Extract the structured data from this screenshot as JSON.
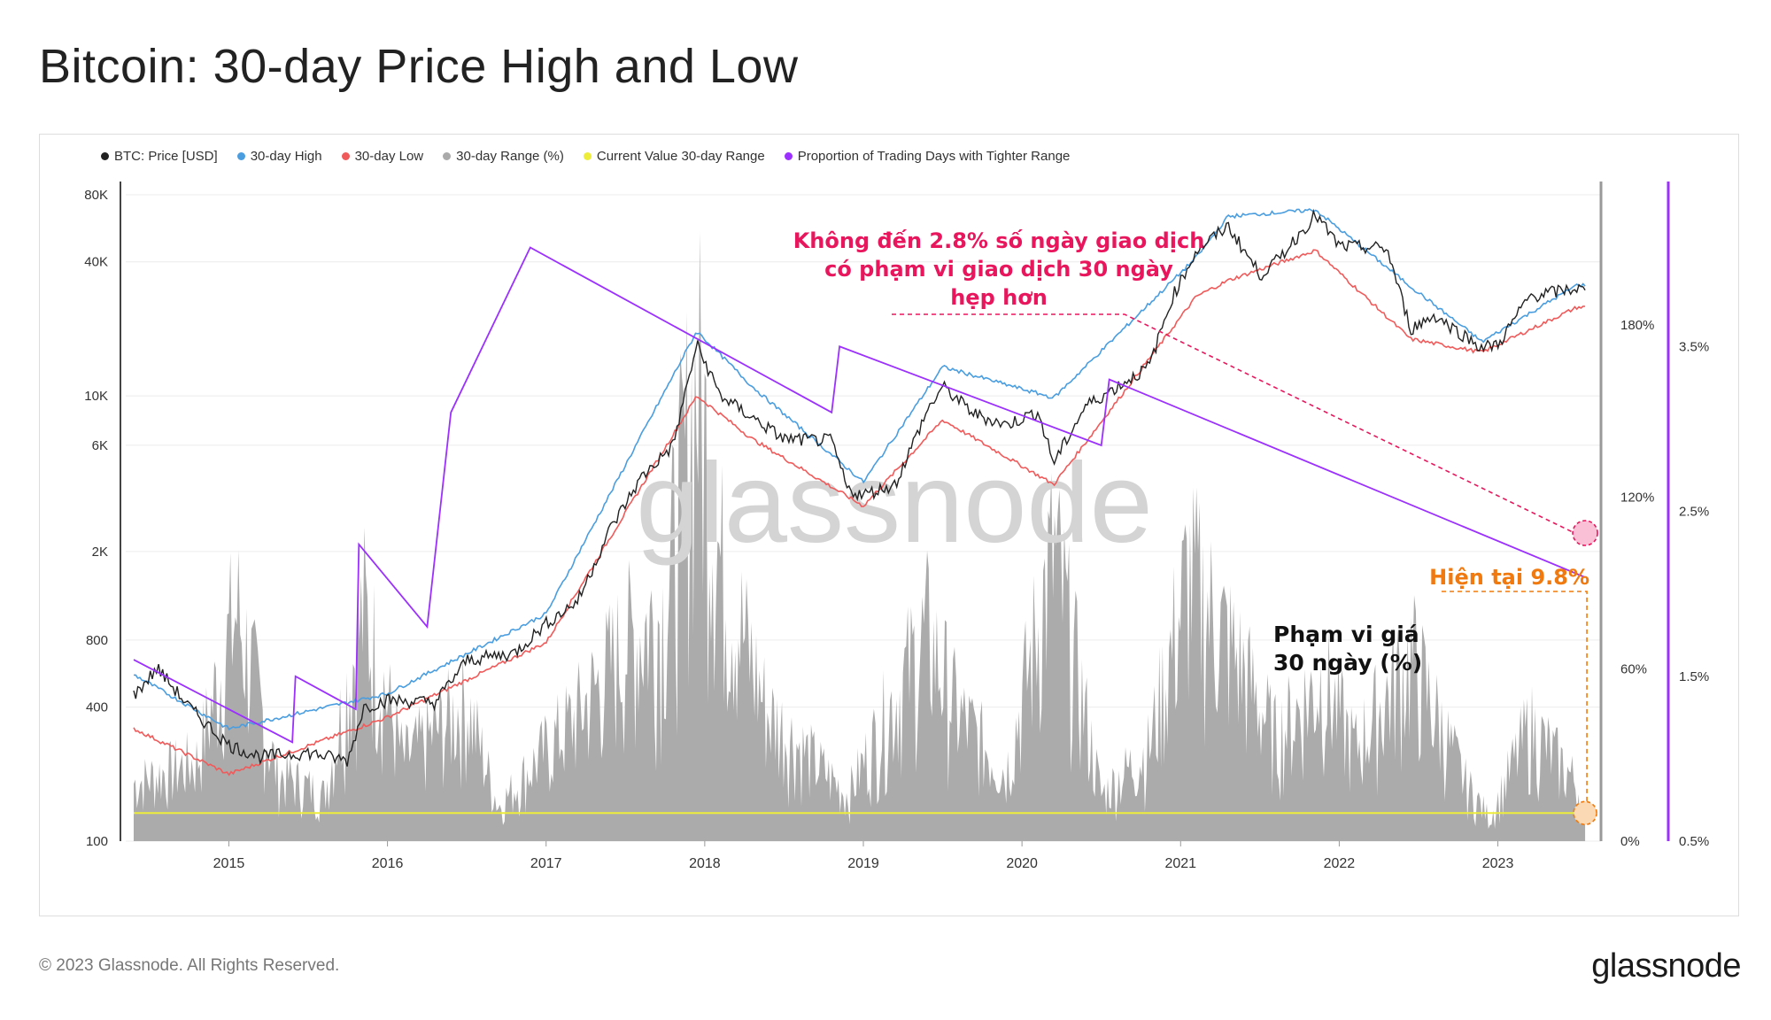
{
  "header": {
    "title": "Bitcoin: 30-day Price High and Low"
  },
  "legend": [
    {
      "label": "BTC: Price [USD]",
      "color": "#222222"
    },
    {
      "label": "30-day High",
      "color": "#4a9ee0"
    },
    {
      "label": "30-day Low",
      "color": "#f05a5a"
    },
    {
      "label": "30-day Range (%)",
      "color": "#aaaaaa"
    },
    {
      "label": "Current Value 30-day Range",
      "color": "#eded3a"
    },
    {
      "label": "Proportion of Trading Days with Tighter Range",
      "color": "#9b30ff"
    }
  ],
  "watermark": "glassnode",
  "annotations": {
    "tighter_range_note": [
      "Không đến 2.8% số ngày giao dịch",
      "có phạm vi giao dịch 30 ngày",
      "hẹp hơn"
    ],
    "current_value_note": "Hiện tại 9.8%",
    "range_note": [
      "Phạm vi giá",
      "30 ngày (%)"
    ]
  },
  "footer": {
    "copyright": "© 2023 Glassnode. All Rights Reserved.",
    "logo": "glassnode"
  },
  "chart_data": {
    "type": "line",
    "x_ticks": [
      "2015",
      "2016",
      "2017",
      "2018",
      "2019",
      "2020",
      "2021",
      "2022",
      "2023"
    ],
    "price_axis": {
      "scale": "log",
      "ticks": [
        "100",
        "400",
        "800",
        "2K",
        "6K",
        "10K",
        "40K",
        "80K"
      ],
      "ylim": [
        100,
        80000
      ]
    },
    "range_axis": {
      "ticks": [
        "0%",
        "60%",
        "120%",
        "180%"
      ],
      "ylim": [
        0,
        230
      ]
    },
    "proportion_axis": {
      "ticks": [
        "0.5%",
        "1.5%",
        "2.5%",
        "3.5%"
      ],
      "ylim": [
        0.5,
        4.5
      ]
    },
    "series": [
      {
        "name": "BTC: Price [USD]",
        "x": [
          2014.4,
          2014.55,
          2014.75,
          2015.0,
          2015.2,
          2015.5,
          2015.75,
          2015.85,
          2016.0,
          2016.3,
          2016.5,
          2016.8,
          2017.0,
          2017.2,
          2017.4,
          2017.6,
          2017.8,
          2017.95,
          2018.1,
          2018.3,
          2018.5,
          2018.8,
          2018.9,
          2019.0,
          2019.2,
          2019.4,
          2019.5,
          2019.7,
          2019.9,
          2020.1,
          2020.2,
          2020.4,
          2020.6,
          2020.8,
          2020.95,
          2021.1,
          2021.3,
          2021.5,
          2021.6,
          2021.85,
          2022.0,
          2022.3,
          2022.45,
          2022.6,
          2022.9,
          2023.0,
          2023.2,
          2023.5,
          2023.55
        ],
        "values": [
          450,
          600,
          400,
          270,
          240,
          250,
          230,
          400,
          430,
          420,
          650,
          700,
          950,
          1200,
          2500,
          4300,
          6000,
          17000,
          10000,
          8000,
          6400,
          6300,
          3800,
          3600,
          4000,
          8500,
          11000,
          8300,
          7400,
          8500,
          5000,
          9000,
          11000,
          13500,
          28000,
          45000,
          58000,
          35000,
          40000,
          65000,
          47000,
          46000,
          20000,
          23000,
          16500,
          17000,
          28000,
          30500,
          29500
        ]
      },
      {
        "name": "30-day High",
        "x": [
          2014.4,
          2015.0,
          2016.0,
          2017.0,
          2017.95,
          2018.3,
          2019.0,
          2019.5,
          2020.2,
          2021.1,
          2021.3,
          2021.85,
          2022.45,
          2022.9,
          2023.5
        ],
        "values": [
          560,
          320,
          460,
          1050,
          19500,
          11000,
          4100,
          13500,
          9800,
          42000,
          64000,
          68500,
          31000,
          17500,
          31500
        ]
      },
      {
        "name": "30-day Low",
        "x": [
          2014.4,
          2015.0,
          2016.0,
          2017.0,
          2017.95,
          2018.3,
          2019.0,
          2019.5,
          2020.2,
          2021.1,
          2021.3,
          2021.85,
          2022.45,
          2022.9,
          2023.5
        ],
        "values": [
          320,
          200,
          360,
          780,
          10000,
          6400,
          3200,
          7800,
          4000,
          28000,
          33000,
          45000,
          18000,
          15700,
          25000
        ]
      },
      {
        "name": "30-day Range (%)",
        "x": [
          2014.4,
          2014.8,
          2015.05,
          2015.3,
          2015.6,
          2015.85,
          2016.1,
          2016.5,
          2016.7,
          2017.0,
          2017.2,
          2017.5,
          2017.75,
          2017.95,
          2018.1,
          2018.4,
          2018.9,
          2019.4,
          2019.6,
          2019.9,
          2020.2,
          2020.5,
          2020.8,
          2021.05,
          2021.35,
          2021.6,
          2021.9,
          2022.1,
          2022.45,
          2022.8,
          2022.95,
          2023.2,
          2023.5,
          2023.55
        ],
        "values": [
          25,
          35,
          100,
          30,
          20,
          100,
          35,
          60,
          15,
          40,
          55,
          85,
          100,
          200,
          120,
          55,
          20,
          90,
          55,
          30,
          125,
          20,
          40,
          115,
          80,
          45,
          70,
          40,
          80,
          25,
          10,
          50,
          25,
          9.8
        ]
      },
      {
        "name": "Current Value 30-day Range",
        "x": [
          2014.4,
          2023.55
        ],
        "values": [
          9.8,
          9.8
        ]
      },
      {
        "name": "Proportion of Trading Days with Tighter Range",
        "x": [
          2014.4,
          2015.4,
          2015.42,
          2015.8,
          2015.82,
          2016.25,
          2016.4,
          2016.9,
          2018.8,
          2018.85,
          2020.5,
          2020.55,
          2023.55
        ],
        "values": [
          1.6,
          1.1,
          1.5,
          1.3,
          2.3,
          1.8,
          3.1,
          4.1,
          3.1,
          3.5,
          2.9,
          3.3,
          2.1
        ]
      }
    ]
  }
}
